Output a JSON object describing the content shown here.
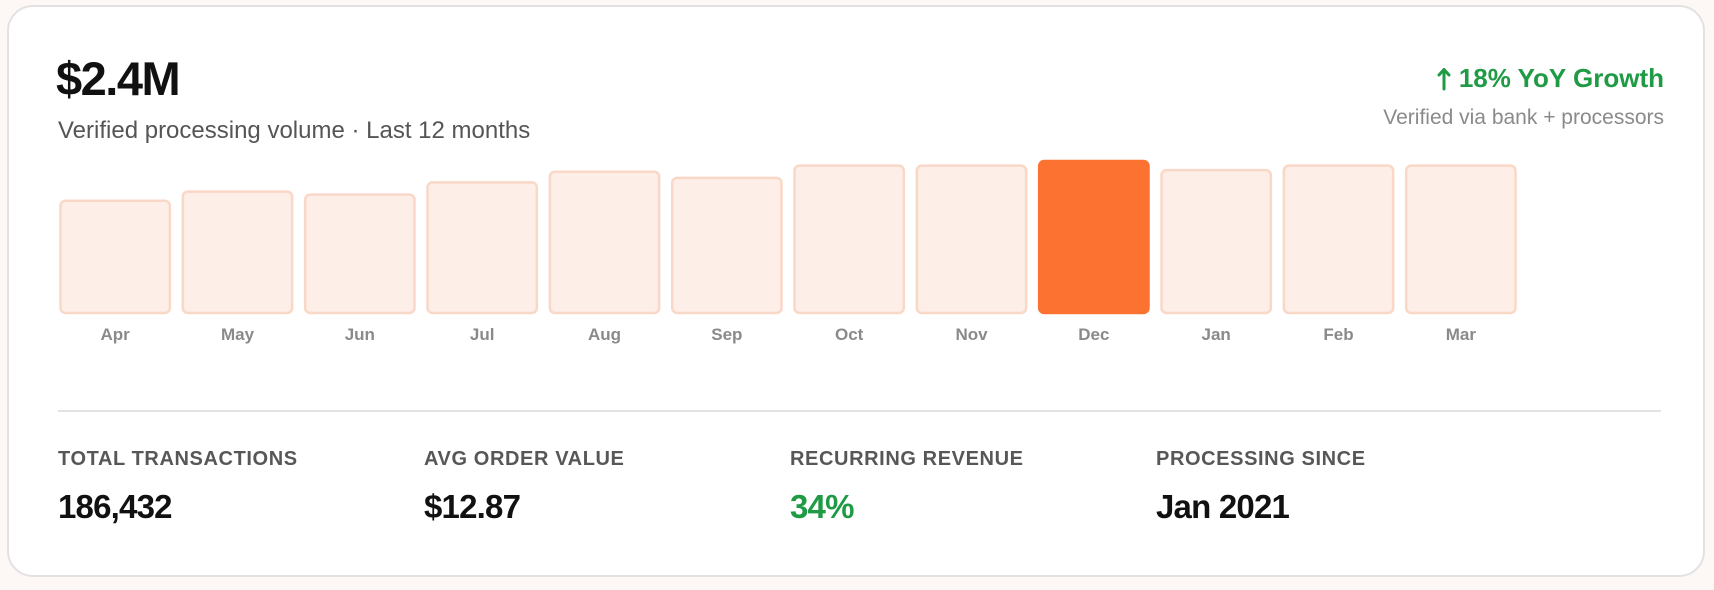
{
  "headline": {
    "amount": "$2.4M",
    "subtitle": "Verified processing volume · Last 12 months"
  },
  "growth": {
    "label": "18% YoY Growth",
    "verified": "Verified via bank + processors",
    "color": "#1f9a45",
    "icon": "arrow-up-icon"
  },
  "chart_data": {
    "type": "bar",
    "categories": [
      "Apr",
      "May",
      "Jun",
      "Jul",
      "Aug",
      "Sep",
      "Oct",
      "Nov",
      "Dec",
      "Jan",
      "Feb",
      "Mar"
    ],
    "values": [
      74,
      80,
      78,
      86,
      93,
      89,
      97,
      97,
      100,
      94,
      97,
      97
    ],
    "highlighted": "Dec",
    "ylim": [
      0,
      100
    ],
    "grid": false,
    "legend": "none",
    "colors": {
      "bar_fill": "#fdeee7",
      "bar_border": "#fad8c8",
      "highlight": "#fc7230",
      "tick_label": "#8a8a8a"
    }
  },
  "stats": [
    {
      "label": "TOTAL TRANSACTIONS",
      "value": "186,432"
    },
    {
      "label": "AVG ORDER VALUE",
      "value": "$12.87"
    },
    {
      "label": "RECURRING REVENUE",
      "value": "34%",
      "color": "#1f9a45"
    },
    {
      "label": "PROCESSING SINCE",
      "value": "Jan 2021"
    }
  ]
}
